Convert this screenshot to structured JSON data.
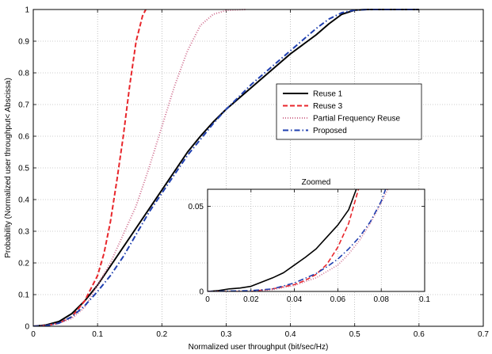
{
  "chart_data": [
    {
      "type": "line",
      "xlabel": "Normalized user throughput (bit/sec/Hz)",
      "ylabel": "Probability (Normalized user throughput< Abscissa)",
      "xlim": [
        0,
        0.7
      ],
      "ylim": [
        0,
        1
      ],
      "xticks": [
        "0",
        "0.1",
        "0.2",
        "0.3",
        "0.4",
        "0.5",
        "0.6",
        "0.7"
      ],
      "yticks": [
        "0",
        "0.1",
        "0.2",
        "0.3",
        "0.4",
        "0.5",
        "0.6",
        "0.7",
        "0.8",
        "0.9",
        "1"
      ],
      "grid": true,
      "legend_position": "right",
      "series": [
        {
          "name": "Reuse 1",
          "color": "#000000",
          "style": "solid",
          "points": [
            [
              0,
              0
            ],
            [
              0.02,
              0.004
            ],
            [
              0.04,
              0.015
            ],
            [
              0.06,
              0.04
            ],
            [
              0.08,
              0.08
            ],
            [
              0.1,
              0.13
            ],
            [
              0.12,
              0.19
            ],
            [
              0.14,
              0.25
            ],
            [
              0.16,
              0.31
            ],
            [
              0.18,
              0.37
            ],
            [
              0.2,
              0.43
            ],
            [
              0.22,
              0.49
            ],
            [
              0.24,
              0.55
            ],
            [
              0.26,
              0.6
            ],
            [
              0.28,
              0.645
            ],
            [
              0.3,
              0.685
            ],
            [
              0.32,
              0.72
            ],
            [
              0.34,
              0.755
            ],
            [
              0.36,
              0.79
            ],
            [
              0.38,
              0.825
            ],
            [
              0.4,
              0.86
            ],
            [
              0.42,
              0.89
            ],
            [
              0.44,
              0.92
            ],
            [
              0.46,
              0.955
            ],
            [
              0.48,
              0.985
            ],
            [
              0.5,
              0.998
            ],
            [
              0.52,
              1
            ],
            [
              0.6,
              1
            ]
          ]
        },
        {
          "name": "Reuse 3",
          "color": "#e8262b",
          "style": "dashed",
          "points": [
            [
              0,
              0
            ],
            [
              0.02,
              0.002
            ],
            [
              0.04,
              0.01
            ],
            [
              0.06,
              0.03
            ],
            [
              0.08,
              0.08
            ],
            [
              0.1,
              0.16
            ],
            [
              0.11,
              0.23
            ],
            [
              0.12,
              0.33
            ],
            [
              0.13,
              0.46
            ],
            [
              0.14,
              0.6
            ],
            [
              0.15,
              0.76
            ],
            [
              0.16,
              0.9
            ],
            [
              0.17,
              0.98
            ],
            [
              0.175,
              1
            ]
          ]
        },
        {
          "name": "Partial Frequency Reuse",
          "color": "#d07090",
          "style": "dotted",
          "points": [
            [
              0,
              0
            ],
            [
              0.02,
              0.002
            ],
            [
              0.04,
              0.01
            ],
            [
              0.06,
              0.025
            ],
            [
              0.08,
              0.06
            ],
            [
              0.1,
              0.13
            ],
            [
              0.12,
              0.2
            ],
            [
              0.14,
              0.29
            ],
            [
              0.16,
              0.38
            ],
            [
              0.18,
              0.5
            ],
            [
              0.2,
              0.63
            ],
            [
              0.22,
              0.76
            ],
            [
              0.24,
              0.87
            ],
            [
              0.26,
              0.95
            ],
            [
              0.28,
              0.985
            ],
            [
              0.3,
              0.997
            ],
            [
              0.33,
              1
            ]
          ]
        },
        {
          "name": "Proposed",
          "color": "#1f3fb0",
          "style": "dashdot",
          "points": [
            [
              0,
              0
            ],
            [
              0.02,
              0.002
            ],
            [
              0.04,
              0.01
            ],
            [
              0.06,
              0.03
            ],
            [
              0.08,
              0.065
            ],
            [
              0.1,
              0.11
            ],
            [
              0.12,
              0.16
            ],
            [
              0.14,
              0.22
            ],
            [
              0.16,
              0.29
            ],
            [
              0.18,
              0.36
            ],
            [
              0.2,
              0.42
            ],
            [
              0.22,
              0.48
            ],
            [
              0.24,
              0.54
            ],
            [
              0.26,
              0.59
            ],
            [
              0.28,
              0.64
            ],
            [
              0.3,
              0.685
            ],
            [
              0.32,
              0.725
            ],
            [
              0.34,
              0.765
            ],
            [
              0.36,
              0.8
            ],
            [
              0.38,
              0.835
            ],
            [
              0.4,
              0.87
            ],
            [
              0.42,
              0.905
            ],
            [
              0.44,
              0.94
            ],
            [
              0.46,
              0.97
            ],
            [
              0.48,
              0.99
            ],
            [
              0.5,
              0.998
            ],
            [
              0.52,
              1
            ],
            [
              0.6,
              1
            ]
          ]
        }
      ]
    },
    {
      "type": "line",
      "title": "Zoomed",
      "xlim": [
        0,
        0.1
      ],
      "ylim": [
        0,
        0.06
      ],
      "xticks": [
        "0",
        "0.02",
        "0.04",
        "0.06",
        "0.08",
        "0.1"
      ],
      "yticks": [
        "0",
        "0.05"
      ],
      "ytick_values": [
        0,
        0.05
      ],
      "grid": true,
      "series": [
        {
          "name": "Reuse 1",
          "color": "#000000",
          "style": "solid",
          "points": [
            [
              0,
              0
            ],
            [
              0.005,
              0.0005
            ],
            [
              0.01,
              0.0015
            ],
            [
              0.015,
              0.002
            ],
            [
              0.02,
              0.003
            ],
            [
              0.025,
              0.0055
            ],
            [
              0.03,
              0.008
            ],
            [
              0.035,
              0.011
            ],
            [
              0.04,
              0.0155
            ],
            [
              0.045,
              0.02
            ],
            [
              0.05,
              0.025
            ],
            [
              0.055,
              0.032
            ],
            [
              0.06,
              0.039
            ],
            [
              0.065,
              0.048
            ],
            [
              0.0685,
              0.06
            ]
          ]
        },
        {
          "name": "Reuse 3",
          "color": "#e8262b",
          "style": "dashed",
          "points": [
            [
              0,
              0
            ],
            [
              0.02,
              0
            ],
            [
              0.03,
              0.0015
            ],
            [
              0.04,
              0.004
            ],
            [
              0.045,
              0.0065
            ],
            [
              0.05,
              0.01
            ],
            [
              0.055,
              0.016
            ],
            [
              0.06,
              0.026
            ],
            [
              0.065,
              0.04
            ],
            [
              0.0695,
              0.06
            ]
          ]
        },
        {
          "name": "Partial Frequency Reuse",
          "color": "#d07090",
          "style": "dotted",
          "points": [
            [
              0,
              0
            ],
            [
              0.02,
              0
            ],
            [
              0.03,
              0.001
            ],
            [
              0.04,
              0.0035
            ],
            [
              0.05,
              0.008
            ],
            [
              0.06,
              0.0155
            ],
            [
              0.065,
              0.022
            ],
            [
              0.07,
              0.03
            ],
            [
              0.075,
              0.04
            ],
            [
              0.08,
              0.052
            ],
            [
              0.083,
              0.06
            ]
          ]
        },
        {
          "name": "Proposed",
          "color": "#1f3fb0",
          "style": "dashdot",
          "points": [
            [
              0,
              0
            ],
            [
              0.02,
              0.0005
            ],
            [
              0.03,
              0.0015
            ],
            [
              0.04,
              0.005
            ],
            [
              0.05,
              0.0105
            ],
            [
              0.055,
              0.0145
            ],
            [
              0.06,
              0.019
            ],
            [
              0.065,
              0.025
            ],
            [
              0.07,
              0.032
            ],
            [
              0.075,
              0.041
            ],
            [
              0.08,
              0.053
            ],
            [
              0.082,
              0.06
            ]
          ]
        }
      ]
    }
  ]
}
